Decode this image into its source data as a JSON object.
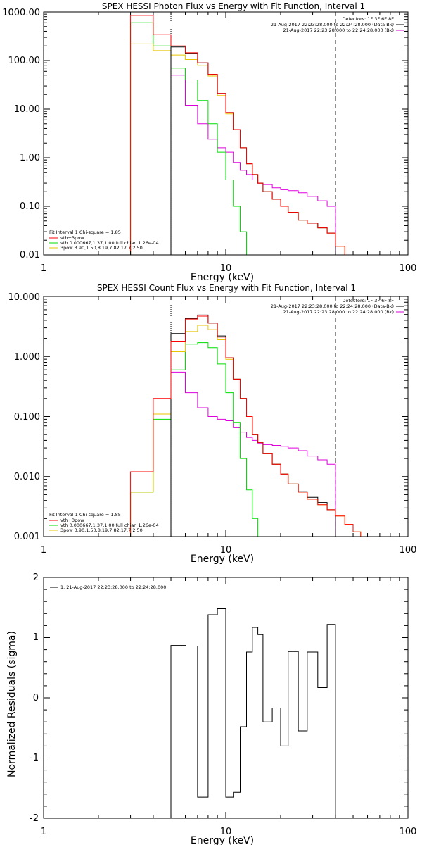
{
  "chart_data": [
    {
      "type": "line",
      "title": "SPEX HESSI Photon Flux vs Energy with Fit Function, Interval 1",
      "xlabel": "Energy (keV)",
      "ylabel": "",
      "xscale": "log",
      "yscale": "log",
      "xlim": [
        1,
        100
      ],
      "ylim": [
        0.01,
        1000
      ],
      "x_tick_labels": [
        "1",
        "10",
        "100"
      ],
      "y_tick_labels": [
        "0.01",
        "0.10",
        "1.00",
        "10.00",
        "100.00",
        "1000.00"
      ],
      "vlines": [
        {
          "x": 5,
          "style": "dotted"
        },
        {
          "x": 40,
          "style": "dashed"
        }
      ],
      "info": {
        "detectors": "Detectors: 1F 3F 6F 8F",
        "data_interval": "21-Aug-2017 22:23:28.000 to 22:24:28.000 (Data-Bk)",
        "bk_interval": "21-Aug-2017 22:23:28.000 to 22:24:28.000 (Bk)"
      },
      "legend": {
        "placement": "bottom-left",
        "heading": "Fit Interval 1   Chi-square = 1.85",
        "entries": [
          "vth+3pow",
          "vth 0.000667,1.37,1.00   full chian 1.26e-04",
          "3pow 3.90,1.50,8.19,7.82,17.7,2.50"
        ]
      },
      "edges": [
        3,
        4,
        5,
        6,
        7,
        8,
        9,
        10,
        11,
        12,
        13,
        14,
        15,
        16,
        18,
        20,
        22,
        25,
        28,
        32,
        36,
        40,
        45,
        50
      ],
      "series": [
        {
          "role": "data",
          "color": "#000000",
          "values": [
            null,
            null,
            190,
            140,
            90,
            52,
            21,
            8.5,
            3.8,
            1.6,
            0.75,
            0.45,
            0.3,
            0.2,
            0.14,
            0.1,
            0.075,
            0.052,
            0.045,
            0.036,
            0.028,
            null,
            null
          ]
        },
        {
          "role": "fit-total",
          "color": "#ff0000",
          "values": [
            850,
            340,
            200,
            145,
            90,
            52,
            21,
            8.5,
            3.8,
            1.6,
            0.75,
            0.45,
            0.3,
            0.2,
            0.14,
            0.1,
            0.075,
            0.052,
            0.045,
            0.036,
            0.028,
            0.015,
            0.01
          ]
        },
        {
          "role": "fit-thermal",
          "color": "#00dd00",
          "values": [
            600,
            200,
            70,
            40,
            15,
            5,
            1.3,
            0.35,
            0.1,
            0.03,
            0.01,
            null,
            null,
            null,
            null,
            null,
            null,
            null,
            null,
            null,
            null,
            null,
            null
          ]
        },
        {
          "role": "fit-powerlaw",
          "color": "#e8c400",
          "values": [
            220,
            160,
            130,
            105,
            80,
            48,
            19,
            8,
            3.8,
            1.6,
            0.75,
            0.45,
            0.3,
            0.2,
            0.14,
            0.1,
            0.075,
            0.052,
            0.045,
            0.036,
            0.028,
            0.015,
            0.01
          ]
        },
        {
          "role": "background",
          "color": "#dd00dd",
          "values": [
            null,
            null,
            50,
            12,
            5,
            2.4,
            1.6,
            1.3,
            0.8,
            0.55,
            0.45,
            0.35,
            0.3,
            0.28,
            0.24,
            0.22,
            0.21,
            0.19,
            0.16,
            0.13,
            0.1,
            null,
            null
          ]
        }
      ]
    },
    {
      "type": "line",
      "title": "SPEX HESSI Count Flux vs Energy with Fit Function, Interval 1",
      "xlabel": "Energy (keV)",
      "ylabel": "",
      "xscale": "log",
      "yscale": "log",
      "xlim": [
        1,
        100
      ],
      "ylim": [
        0.001,
        10
      ],
      "x_tick_labels": [
        "1",
        "10",
        "100"
      ],
      "y_tick_labels": [
        "0.001",
        "0.010",
        "0.100",
        "1.000",
        "10.000"
      ],
      "vlines": [
        {
          "x": 5,
          "style": "dotted"
        },
        {
          "x": 40,
          "style": "dashed"
        }
      ],
      "info": {
        "detectors": "Detectors: 1F 3F 6F 8F",
        "data_interval": "21-Aug-2017 22:23:28.000 to 22:24:28.000 (Data-Bk)",
        "bk_interval": "21-Aug-2017 22:23:28.000 to 22:24:28.000 (Bk)"
      },
      "legend": {
        "placement": "bottom-left",
        "heading": "Fit Interval 1   Chi-square = 1.85",
        "entries": [
          "vth+3pow",
          "vth 0.000667,1.37,1.00   full chian 1.26e-04",
          "3pow 3.90,1.50,8.19,7.82,17.7,2.50"
        ]
      },
      "edges": [
        3,
        4,
        5,
        6,
        7,
        8,
        9,
        10,
        11,
        12,
        13,
        14,
        15,
        16,
        18,
        20,
        22,
        25,
        28,
        32,
        36,
        40,
        45,
        50,
        55,
        60,
        65
      ],
      "series": [
        {
          "role": "data",
          "color": "#000000",
          "values": [
            null,
            null,
            2.4,
            4.3,
            4.9,
            3.6,
            2.2,
            0.95,
            0.42,
            0.2,
            0.1,
            0.05,
            0.037,
            0.024,
            0.016,
            0.011,
            0.0075,
            0.0056,
            0.0045,
            0.0037,
            0.0028,
            null,
            null,
            null,
            null,
            null
          ]
        },
        {
          "role": "fit-total",
          "color": "#ff0000",
          "values": [
            0.012,
            0.2,
            1.8,
            4.2,
            4.7,
            3.6,
            2.1,
            0.95,
            0.42,
            0.2,
            0.1,
            0.05,
            0.037,
            0.024,
            0.016,
            0.011,
            0.0075,
            0.0055,
            0.0042,
            0.0034,
            0.0028,
            0.0022,
            0.0016,
            0.0012,
            0.001,
            null
          ]
        },
        {
          "role": "fit-thermal",
          "color": "#00dd00",
          "values": [
            0.0055,
            0.09,
            0.6,
            1.6,
            1.7,
            1.4,
            0.75,
            0.25,
            0.08,
            0.02,
            0.006,
            0.002,
            0.001,
            null,
            null,
            null,
            null,
            null,
            null,
            null,
            null,
            null,
            null,
            null,
            null,
            null
          ]
        },
        {
          "role": "fit-powerlaw",
          "color": "#e8c400",
          "values": [
            0.0055,
            0.11,
            1.2,
            2.6,
            3.3,
            2.8,
            1.9,
            0.9,
            0.42,
            0.2,
            0.1,
            0.05,
            0.037,
            0.024,
            0.016,
            0.011,
            0.0075,
            0.0055,
            0.0042,
            0.0034,
            0.0028,
            0.0022,
            0.0016,
            0.0012,
            0.001,
            null
          ]
        },
        {
          "role": "background",
          "color": "#dd00dd",
          "values": [
            null,
            null,
            0.55,
            0.25,
            0.14,
            0.1,
            0.09,
            0.085,
            0.065,
            0.055,
            0.045,
            0.04,
            0.036,
            0.034,
            0.033,
            0.032,
            0.03,
            0.027,
            0.022,
            0.019,
            0.016,
            null,
            null,
            null,
            null,
            null
          ]
        }
      ]
    },
    {
      "type": "line",
      "title": "",
      "xlabel": "Energy (keV)",
      "ylabel": "Normalized Residuals (sigma)",
      "xscale": "log",
      "yscale": "linear",
      "xlim": [
        1,
        100
      ],
      "ylim": [
        -2,
        2
      ],
      "x_tick_labels": [
        "1",
        "10",
        "100"
      ],
      "y_tick_labels": [
        "-2",
        "-1",
        "0",
        "1",
        "2"
      ],
      "legend": {
        "placement": "top-left",
        "entries": [
          "1. 21-Aug-2017 22:23:28.000 to 22:24:28.000"
        ]
      },
      "edges": [
        5,
        6,
        7,
        8,
        9,
        10,
        11,
        12,
        13,
        14,
        15,
        16,
        18,
        20,
        22,
        25,
        28,
        32,
        36,
        40
      ],
      "series": [
        {
          "name": "1. 21-Aug-2017 22:23:28.000 to 22:24:28.000",
          "color": "#000000",
          "values": [
            0.87,
            0.86,
            -1.65,
            1.38,
            1.48,
            -1.65,
            -1.57,
            -0.48,
            0.76,
            1.17,
            1.05,
            -0.4,
            -0.17,
            -0.8,
            0.77,
            -0.55,
            0.76,
            0.17,
            1.22
          ]
        }
      ]
    }
  ]
}
